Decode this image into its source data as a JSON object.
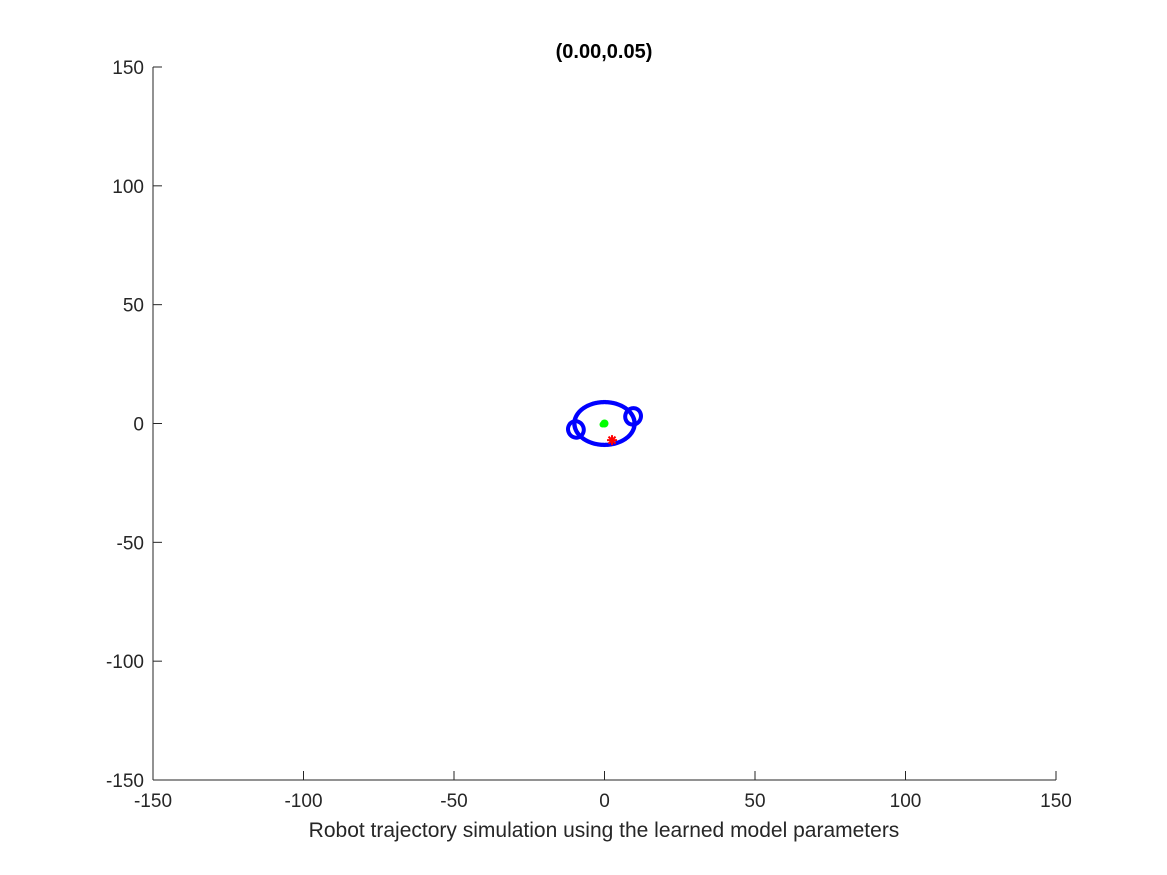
{
  "chart_data": {
    "type": "scatter",
    "title": "(0.00,0.05)",
    "xlabel": "Robot trajectory simulation using the learned model parameters",
    "ylabel": "",
    "xlim": [
      -150,
      150
    ],
    "ylim": [
      -150,
      150
    ],
    "xticks": [
      -150,
      -100,
      -50,
      0,
      50,
      100,
      150
    ],
    "yticks": [
      -150,
      -100,
      -50,
      0,
      50,
      100,
      150
    ],
    "grid": false,
    "box": "left-bottom",
    "colors": {
      "trajectory": "#0000ff",
      "start": "#00ff00",
      "current": "#ff0000",
      "axis": "#262626"
    },
    "series": [
      {
        "marker": "dot",
        "color": "#0000ff",
        "description_note": "",
        "trajectory_center": [
          0,
          0
        ],
        "trajectory_radius_x": 10,
        "trajectory_radius_y": 9,
        "loops": [
          {
            "center": [
              -9.5,
              -2.5
            ],
            "rx": 3,
            "ry": 4,
            "rotation_deg": -20
          },
          {
            "center": [
              9.5,
              3
            ],
            "rx": 3,
            "ry": 4,
            "rotation_deg": 20
          }
        ]
      },
      {
        "marker": "circle",
        "color": "#00ff00",
        "x": [
          0
        ],
        "y": [
          0
        ]
      },
      {
        "marker": "asterisk",
        "color": "#ff0000",
        "x": [
          2.5
        ],
        "y": [
          -7
        ]
      }
    ]
  }
}
